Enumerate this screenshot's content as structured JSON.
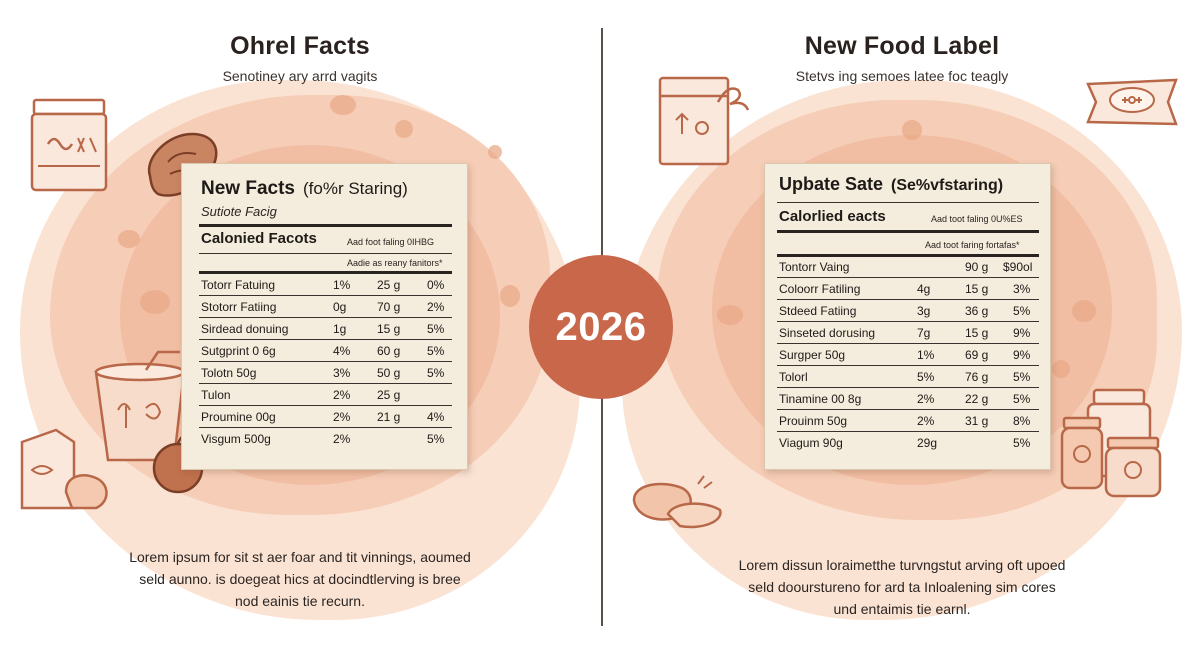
{
  "year_badge": "2026",
  "colors": {
    "accent": "#c8674a",
    "blob": "#f6d3bf",
    "card": "#f4ecdc",
    "ink": "#2a221e"
  },
  "left": {
    "title": "Ohrel Facts",
    "subtitle": "Senotiney ary arrd vagits",
    "label": {
      "title": "New Facts",
      "title_paren": "(fo%r Staring)",
      "subtitle": "Sutiote Facig",
      "section": "Calonied Facots",
      "note1": "Aad foot faling 0IHBG",
      "note2": "Aadie as reany fanitors*",
      "rows": [
        {
          "name": "Totorr Fatuing",
          "c1": "1%",
          "c2": "25 g",
          "c3": "0%"
        },
        {
          "name": "Stotorr Fatiing",
          "c1": "0g",
          "c2": "70 g",
          "c3": "2%"
        },
        {
          "name": "Sirdead donuing",
          "c1": "1g",
          "c2": "15 g",
          "c3": "5%"
        },
        {
          "name": "Sutgprint 0 6g",
          "c1": "4%",
          "c2": "60 g",
          "c3": "5%"
        },
        {
          "name": "Tolotn 50g",
          "c1": "3%",
          "c2": "50 g",
          "c3": "5%"
        },
        {
          "name": "Tulon",
          "c1": "2%",
          "c2": "25 g",
          "c3": ""
        },
        {
          "name": "Proumine 00g",
          "c1": "2%",
          "c2": "21 g",
          "c3": "4%"
        },
        {
          "name": "Visgum 500g",
          "c1": "2%",
          "c2": "",
          "c3": "5%"
        }
      ]
    },
    "footer": [
      "Lorem ipsum for sit st aer foar and tit vinnings, aoumed",
      "seld aunno. is doegeat hics at docindtlerving is bree",
      "nod eainis tie recurn."
    ]
  },
  "right": {
    "title": "New Food Label",
    "subtitle": "Stetvs ing semoes latee foc teagly",
    "label": {
      "title": "Upbate Sate",
      "title_paren": "(Se%vfstaring)",
      "section": "Calorlied eacts",
      "note1": "Aad toot faling 0U%ES",
      "note2": "Aad toot faring fortafas*",
      "rows": [
        {
          "name": "Tontorr Vaing",
          "c1": "",
          "c2": "90 g",
          "c3": "$90ol"
        },
        {
          "name": "Coloorr Fatiling",
          "c1": "4g",
          "c2": "15 g",
          "c3": "3%"
        },
        {
          "name": "Stdeed Fatiing",
          "c1": "3g",
          "c2": "36 g",
          "c3": "5%"
        },
        {
          "name": "Sinseted dorusing",
          "c1": "7g",
          "c2": "15 g",
          "c3": "9%"
        },
        {
          "name": "Surgper 50g",
          "c1": "1%",
          "c2": "69 g",
          "c3": "9%"
        },
        {
          "name": "Tolorl",
          "c1": "5%",
          "c2": "76 g",
          "c3": "5%"
        },
        {
          "name": "Tinamine 00 8g",
          "c1": "2%",
          "c2": "22 g",
          "c3": "5%"
        },
        {
          "name": "Prouinm 50g",
          "c1": "2%",
          "c2": "31 g",
          "c3": "8%"
        },
        {
          "name": "Viagum 90g",
          "c1": "29g",
          "c2": "",
          "c3": "5%"
        }
      ]
    },
    "footer": [
      "Lorem dissun loraimetthe turvngstut arving oft upoed",
      "seld doourstureno for ard ta Inloalening sim cores",
      "und entaimis tie earnl."
    ]
  }
}
